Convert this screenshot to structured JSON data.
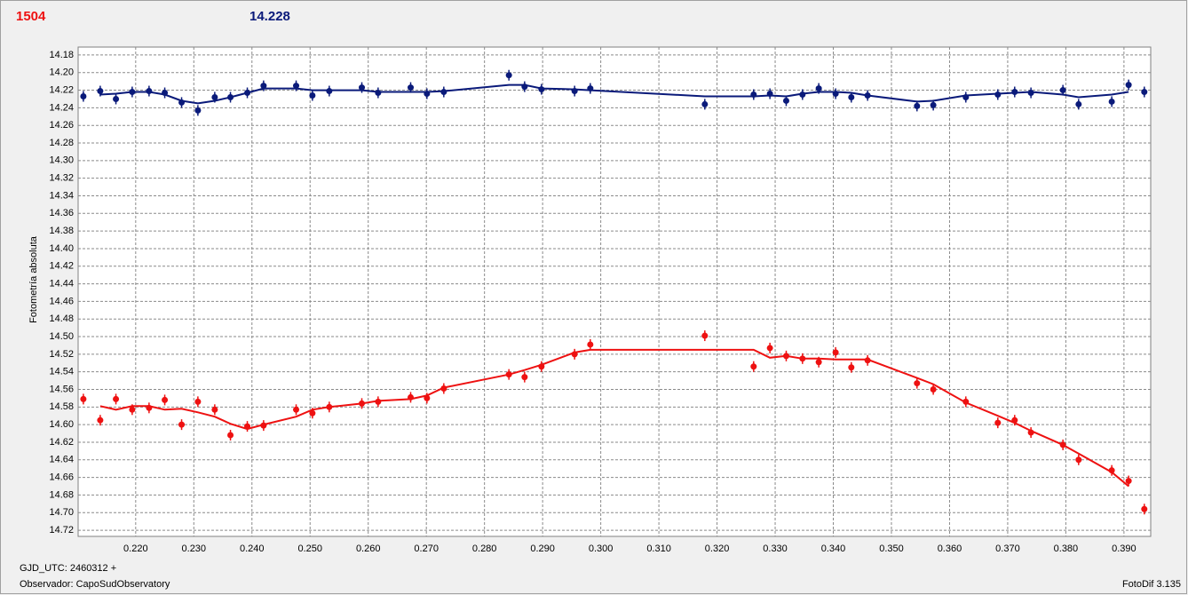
{
  "chart_data": {
    "type": "scatter",
    "header_left": "1504",
    "header_right": "14.228",
    "ylabel": "Fotometría absoluta",
    "footer_lines": [
      "GJD_UTC: 2460312 +",
      "Observador: CapoSudObservatory"
    ],
    "footer_right": "FotoDif 3.135",
    "y_inverted": true,
    "grid": true,
    "xlim": [
      0.2101,
      0.3946
    ],
    "ylim": [
      14.171,
      14.727
    ],
    "xticks": [
      {
        "value": 0.22,
        "label": "0.220"
      },
      {
        "value": 0.23,
        "label": "0.230"
      },
      {
        "value": 0.24,
        "label": "0.240"
      },
      {
        "value": 0.25,
        "label": "0.250"
      },
      {
        "value": 0.26,
        "label": "0.260"
      },
      {
        "value": 0.27,
        "label": "0.270"
      },
      {
        "value": 0.28,
        "label": "0.280"
      },
      {
        "value": 0.29,
        "label": "0.290"
      },
      {
        "value": 0.3,
        "label": "0.300"
      },
      {
        "value": 0.31,
        "label": "0.310"
      },
      {
        "value": 0.32,
        "label": "0.320"
      },
      {
        "value": 0.33,
        "label": "0.330"
      },
      {
        "value": 0.34,
        "label": "0.340"
      },
      {
        "value": 0.35,
        "label": "0.350"
      },
      {
        "value": 0.36,
        "label": "0.360"
      },
      {
        "value": 0.37,
        "label": "0.370"
      },
      {
        "value": 0.38,
        "label": "0.380"
      },
      {
        "value": 0.39,
        "label": "0.390"
      }
    ],
    "yticks": [
      14.18,
      {
        "value": 14.2,
        "label": "14.20"
      },
      14.22,
      14.24,
      14.26,
      14.28,
      {
        "value": 14.3,
        "label": "14.30"
      },
      14.32,
      14.34,
      14.36,
      14.38,
      {
        "value": 14.4,
        "label": "14.40"
      },
      14.42,
      14.44,
      14.46,
      14.48,
      {
        "value": 14.5,
        "label": "14.50"
      },
      14.52,
      14.54,
      14.56,
      14.58,
      {
        "value": 14.6,
        "label": "14.60"
      },
      14.62,
      14.64,
      14.66,
      14.68,
      {
        "value": 14.7,
        "label": "14.70"
      },
      14.72
    ],
    "x": [
      0.211,
      0.2139,
      0.2166,
      0.2194,
      0.2223,
      0.225,
      0.2279,
      0.2307,
      0.2336,
      0.2363,
      0.2392,
      0.242,
      0.2476,
      0.2504,
      0.2533,
      0.2589,
      0.2617,
      0.2673,
      0.2701,
      0.273,
      0.2842,
      0.2869,
      0.2898,
      0.2955,
      0.2982,
      0.3179,
      0.3263,
      0.3291,
      0.3319,
      0.3347,
      0.3375,
      0.3404,
      0.3431,
      0.3459,
      0.3544,
      0.3572,
      0.3628,
      0.3683,
      0.3712,
      0.374,
      0.3795,
      0.3822,
      0.3879,
      0.3908,
      0.3935
    ],
    "series": [
      {
        "color": "#0a1a7a",
        "values": [
          14.227,
          14.221,
          14.23,
          14.222,
          14.221,
          14.223,
          14.234,
          14.243,
          14.228,
          14.228,
          14.223,
          14.215,
          14.215,
          14.226,
          14.221,
          14.217,
          14.223,
          14.217,
          14.224,
          14.222,
          14.203,
          14.216,
          14.219,
          14.221,
          14.218,
          14.236,
          14.225,
          14.224,
          14.232,
          14.225,
          14.218,
          14.224,
          14.228,
          14.226,
          14.238,
          14.237,
          14.228,
          14.225,
          14.222,
          14.223,
          14.22,
          14.236,
          14.233,
          14.214,
          14.222
        ],
        "fit": [
          null,
          14.225,
          14.224,
          14.222,
          14.222,
          14.225,
          14.232,
          14.235,
          14.232,
          14.228,
          14.223,
          14.218,
          14.218,
          14.22,
          14.22,
          14.22,
          14.222,
          14.222,
          14.222,
          14.221,
          14.214,
          14.214,
          14.218,
          14.219,
          14.22,
          14.227,
          14.227,
          14.226,
          14.227,
          14.224,
          14.222,
          14.222,
          14.223,
          14.226,
          14.233,
          14.232,
          14.226,
          14.224,
          14.223,
          14.222,
          14.225,
          14.228,
          14.225,
          14.222,
          null
        ]
      },
      {
        "color": "#ee1111",
        "values": [
          14.571,
          14.595,
          14.571,
          14.583,
          14.581,
          14.572,
          14.6,
          14.574,
          14.583,
          14.612,
          14.602,
          14.601,
          14.583,
          14.587,
          14.58,
          14.576,
          14.574,
          14.569,
          14.57,
          14.559,
          14.543,
          14.546,
          14.534,
          14.52,
          14.509,
          14.499,
          14.534,
          14.513,
          14.522,
          14.525,
          14.529,
          14.518,
          14.535,
          14.527,
          14.553,
          14.56,
          14.574,
          14.598,
          14.595,
          14.609,
          14.623,
          14.64,
          14.652,
          14.664,
          14.696
        ],
        "fit": [
          null,
          14.579,
          14.583,
          14.579,
          14.579,
          14.583,
          14.582,
          14.586,
          14.591,
          14.599,
          14.605,
          14.6,
          14.591,
          14.583,
          14.58,
          14.576,
          14.573,
          14.571,
          14.567,
          14.558,
          14.543,
          14.538,
          14.532,
          14.518,
          14.515,
          14.515,
          14.515,
          14.524,
          14.522,
          14.525,
          14.525,
          14.526,
          14.526,
          14.526,
          14.547,
          14.554,
          14.575,
          14.59,
          14.598,
          14.607,
          14.623,
          14.633,
          14.654,
          14.67,
          null
        ]
      }
    ]
  }
}
